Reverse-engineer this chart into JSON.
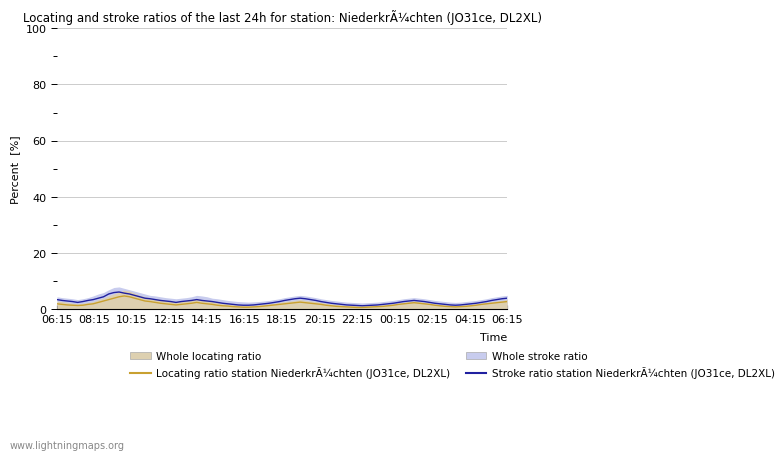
{
  "title": "Locating and stroke ratios of the last 24h for station: NiederkrÃ¼chten (JO31ce, DL2XL)",
  "ylabel": "Percent  [%]",
  "xlabel": "Time",
  "ylim": [
    0,
    100
  ],
  "yticks_major": [
    0,
    20,
    40,
    60,
    80,
    100
  ],
  "yticks_minor": [
    10,
    30,
    50,
    70,
    90
  ],
  "xtick_labels": [
    "06:15",
    "08:15",
    "10:15",
    "12:15",
    "14:15",
    "16:15",
    "18:15",
    "20:15",
    "22:15",
    "00:15",
    "02:15",
    "04:15",
    "06:15"
  ],
  "whole_locating_fill_color": "#ddd0b0",
  "whole_stroke_fill_color": "#c8ccee",
  "station_locating_line_color": "#c8a030",
  "station_stroke_line_color": "#2020a0",
  "legend_labels_patch": [
    "Whole locating ratio",
    "Whole stroke ratio"
  ],
  "legend_labels_line": [
    "Locating ratio station NiederkrÃ¼chten (JO31ce, DL2XL)",
    "Stroke ratio station NiederkrÃ¼chten (JO31ce, DL2XL)"
  ],
  "watermark": "www.lightningmaps.org",
  "whole_locating": [
    3.0,
    2.8,
    2.5,
    2.2,
    2.0,
    2.2,
    2.5,
    2.8,
    3.5,
    4.0,
    4.8,
    5.5,
    6.2,
    6.8,
    6.5,
    5.8,
    5.0,
    4.5,
    4.0,
    3.8,
    3.5,
    3.2,
    3.0,
    2.8,
    3.0,
    3.2,
    3.5,
    3.8,
    3.5,
    3.2,
    2.8,
    2.5,
    2.2,
    2.0,
    1.8,
    1.6,
    1.5,
    1.4,
    1.5,
    1.6,
    1.8,
    2.0,
    2.2,
    2.5,
    2.8,
    3.0,
    3.2,
    3.5,
    3.2,
    3.0,
    2.8,
    2.5,
    2.2,
    2.0,
    1.8,
    1.6,
    1.5,
    1.4,
    1.3,
    1.2,
    1.3,
    1.4,
    1.5,
    1.6,
    1.8,
    2.0,
    2.2,
    2.5,
    2.8,
    3.0,
    2.8,
    2.5,
    2.2,
    2.0,
    1.8,
    1.6,
    1.5,
    1.4,
    1.5,
    1.6,
    1.8,
    2.0,
    2.2,
    2.5,
    2.8,
    3.0,
    3.2,
    3.5
  ],
  "whole_stroke": [
    4.5,
    4.2,
    4.0,
    3.8,
    3.5,
    3.8,
    4.2,
    4.8,
    5.5,
    6.0,
    7.0,
    7.8,
    8.0,
    7.5,
    7.0,
    6.5,
    6.0,
    5.5,
    5.0,
    4.8,
    4.5,
    4.2,
    4.0,
    3.8,
    4.0,
    4.2,
    4.5,
    5.0,
    4.8,
    4.5,
    4.0,
    3.8,
    3.5,
    3.2,
    3.0,
    2.8,
    2.7,
    2.6,
    2.7,
    2.8,
    3.0,
    3.2,
    3.5,
    3.8,
    4.2,
    4.5,
    4.8,
    5.0,
    4.8,
    4.5,
    4.2,
    3.8,
    3.5,
    3.2,
    3.0,
    2.8,
    2.6,
    2.5,
    2.4,
    2.3,
    2.4,
    2.5,
    2.6,
    2.8,
    3.0,
    3.2,
    3.5,
    3.8,
    4.0,
    4.2,
    4.0,
    3.8,
    3.5,
    3.2,
    3.0,
    2.8,
    2.6,
    2.5,
    2.6,
    2.8,
    3.0,
    3.2,
    3.5,
    3.8,
    4.2,
    4.5,
    4.8,
    5.0
  ],
  "station_locating": [
    2.0,
    1.8,
    1.6,
    1.5,
    1.4,
    1.5,
    1.8,
    2.0,
    2.5,
    3.0,
    3.5,
    4.0,
    4.5,
    4.8,
    4.5,
    4.0,
    3.5,
    3.0,
    2.8,
    2.5,
    2.2,
    2.0,
    1.8,
    1.6,
    1.8,
    2.0,
    2.2,
    2.5,
    2.2,
    2.0,
    1.8,
    1.5,
    1.3,
    1.2,
    1.0,
    0.9,
    0.8,
    0.8,
    0.9,
    1.0,
    1.2,
    1.4,
    1.6,
    1.8,
    2.0,
    2.2,
    2.4,
    2.6,
    2.4,
    2.2,
    2.0,
    1.8,
    1.5,
    1.3,
    1.1,
    1.0,
    0.9,
    0.8,
    0.7,
    0.7,
    0.8,
    0.9,
    1.0,
    1.1,
    1.3,
    1.5,
    1.8,
    2.0,
    2.2,
    2.4,
    2.2,
    2.0,
    1.8,
    1.5,
    1.3,
    1.1,
    1.0,
    0.9,
    1.0,
    1.1,
    1.3,
    1.5,
    1.8,
    2.0,
    2.2,
    2.4,
    2.6,
    2.8
  ],
  "station_stroke": [
    3.5,
    3.2,
    3.0,
    2.8,
    2.5,
    2.8,
    3.2,
    3.5,
    4.0,
    4.5,
    5.5,
    6.0,
    6.2,
    5.8,
    5.5,
    5.0,
    4.5,
    4.0,
    3.8,
    3.5,
    3.2,
    3.0,
    2.8,
    2.5,
    2.8,
    3.0,
    3.2,
    3.5,
    3.2,
    3.0,
    2.8,
    2.5,
    2.2,
    2.0,
    1.8,
    1.6,
    1.5,
    1.5,
    1.6,
    1.8,
    2.0,
    2.2,
    2.5,
    2.8,
    3.2,
    3.5,
    3.8,
    4.0,
    3.8,
    3.5,
    3.2,
    2.8,
    2.5,
    2.2,
    2.0,
    1.8,
    1.6,
    1.5,
    1.4,
    1.3,
    1.4,
    1.5,
    1.6,
    1.8,
    2.0,
    2.2,
    2.5,
    2.8,
    3.0,
    3.2,
    3.0,
    2.8,
    2.5,
    2.2,
    2.0,
    1.8,
    1.6,
    1.5,
    1.6,
    1.8,
    2.0,
    2.2,
    2.5,
    2.8,
    3.2,
    3.5,
    3.8,
    4.0
  ]
}
